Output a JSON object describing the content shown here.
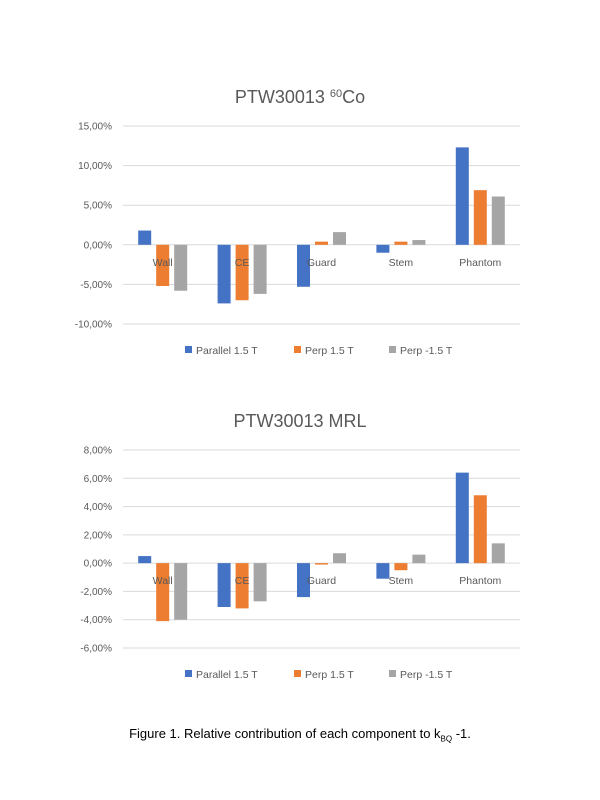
{
  "figure": {
    "caption_prefix": "Figure 1. Relative contribution of each component to k",
    "caption_sub": "BQ",
    "caption_suffix": " -1."
  },
  "colors": {
    "parallel": "#4472C4",
    "perp": "#ED7D31",
    "perp_neg": "#A5A5A5",
    "grid": "#D9D9D9",
    "axis_text": "#595959"
  },
  "chart_data": [
    {
      "type": "bar",
      "title": "PTW30013 ",
      "title_sup": "60",
      "title_suffix": "Co",
      "categories": [
        "Wall",
        "CE",
        "Guard",
        "Stem",
        "Phantom"
      ],
      "ylim": [
        -10,
        15
      ],
      "yticks": [
        -10,
        -5,
        0,
        5,
        10,
        15
      ],
      "ytick_labels": [
        "-10,00%",
        "-5,00%",
        "0,00%",
        "5,00%",
        "10,00%",
        "15,00%"
      ],
      "grid": true,
      "legend_position": "bottom",
      "series": [
        {
          "name": "Parallel 1.5 T",
          "color": "#4472C4",
          "values": [
            1.8,
            -7.4,
            -5.3,
            -1.0,
            12.3
          ]
        },
        {
          "name": "Perp 1.5 T",
          "color": "#ED7D31",
          "values": [
            -5.2,
            -7.0,
            0.4,
            0.4,
            6.9
          ]
        },
        {
          "name": "Perp -1.5 T",
          "color": "#A5A5A5",
          "values": [
            -5.8,
            -6.2,
            1.6,
            0.6,
            6.1
          ]
        }
      ]
    },
    {
      "type": "bar",
      "title": "PTW30013 MRL",
      "title_sup": "",
      "title_suffix": "",
      "categories": [
        "Wall",
        "CE",
        "Guard",
        "Stem",
        "Phantom"
      ],
      "ylim": [
        -6,
        8
      ],
      "yticks": [
        -6,
        -4,
        -2,
        0,
        2,
        4,
        6,
        8
      ],
      "ytick_labels": [
        "-6,00%",
        "-4,00%",
        "-2,00%",
        "0,00%",
        "2,00%",
        "4,00%",
        "6,00%",
        "8,00%"
      ],
      "grid": true,
      "legend_position": "bottom",
      "series": [
        {
          "name": "Parallel 1.5 T",
          "color": "#4472C4",
          "values": [
            0.5,
            -3.1,
            -2.4,
            -1.1,
            6.4
          ]
        },
        {
          "name": "Perp 1.5 T",
          "color": "#ED7D31",
          "values": [
            -4.1,
            -3.2,
            -0.1,
            -0.5,
            4.8
          ]
        },
        {
          "name": "Perp -1.5 T",
          "color": "#A5A5A5",
          "values": [
            -4.0,
            -2.7,
            0.7,
            0.6,
            1.4
          ]
        }
      ]
    }
  ]
}
